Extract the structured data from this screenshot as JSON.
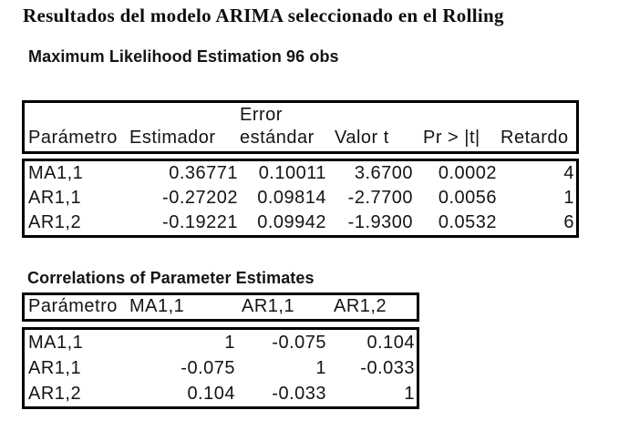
{
  "page": {
    "background": "#ffffff",
    "text_color": "#141414",
    "border_color": "#000000"
  },
  "title": "Resultados del modelo ARIMA seleccionado en el Rolling",
  "estimation": {
    "heading": "Maximum Likelihood Estimation 96 obs",
    "header": {
      "col1": "Parámetro",
      "col2": "Estimador",
      "col3_line1": "Error",
      "col3_line2": "estándar",
      "col4": "Valor t",
      "col5": "Pr > |t|",
      "col6": "Retardo"
    },
    "rows": [
      {
        "param": "MA1,1",
        "estimate": "0.36771",
        "stderr": "0.10011",
        "tvalue": "3.6700",
        "pvalue": "0.0002",
        "lag": "4"
      },
      {
        "param": "AR1,1",
        "estimate": "-0.27202",
        "stderr": "0.09814",
        "tvalue": "-2.7700",
        "pvalue": "0.0056",
        "lag": "1"
      },
      {
        "param": "AR1,2",
        "estimate": "-0.19221",
        "stderr": "0.09942",
        "tvalue": "-1.9300",
        "pvalue": "0.0532",
        "lag": "6"
      }
    ]
  },
  "correlations": {
    "heading": "Correlations of Parameter Estimates",
    "header": {
      "col1": "Parámetro",
      "col2": "MA1,1",
      "col3": "AR1,1",
      "col4": "AR1,2"
    },
    "rows": [
      {
        "param": "MA1,1",
        "ma11": "1",
        "ar11": "-0.075",
        "ar12": "0.104"
      },
      {
        "param": "AR1,1",
        "ma11": "-0.075",
        "ar11": "1",
        "ar12": "-0.033"
      },
      {
        "param": "AR1,2",
        "ma11": "0.104",
        "ar11": "-0.033",
        "ar12": "1"
      }
    ]
  }
}
